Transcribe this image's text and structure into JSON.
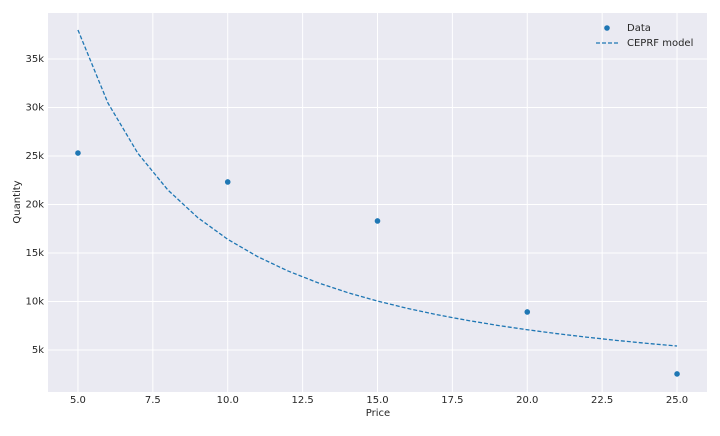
{
  "chart_data": {
    "type": "scatter",
    "xlabel": "Price",
    "ylabel": "Quantity",
    "xlim": [
      4,
      26
    ],
    "xticks": [
      {
        "value": 5,
        "label": "5.0"
      },
      {
        "value": 7.5,
        "label": "7.5"
      },
      {
        "value": 10,
        "label": "10.0"
      },
      {
        "value": 12.5,
        "label": "12.5"
      },
      {
        "value": 15,
        "label": "15.0"
      },
      {
        "value": 17.5,
        "label": "17.5"
      },
      {
        "value": 20,
        "label": "20.0"
      },
      {
        "value": 22.5,
        "label": "22.5"
      },
      {
        "value": 25,
        "label": "25.0"
      }
    ],
    "ylim": [
      670,
      39740
    ],
    "yticks": [
      {
        "value": 5000,
        "label": "5k"
      },
      {
        "value": 10000,
        "label": "10k"
      },
      {
        "value": 15000,
        "label": "15k"
      },
      {
        "value": 20000,
        "label": "20k"
      },
      {
        "value": 25000,
        "label": "25k"
      },
      {
        "value": 30000,
        "label": "30k"
      },
      {
        "value": 35000,
        "label": "35k"
      }
    ],
    "grid": true,
    "legend": "upper-right",
    "series": [
      {
        "name": "Data",
        "type": "scatter",
        "color": "#1f77b4",
        "x": [
          5,
          10,
          15,
          20,
          25
        ],
        "values": [
          25300,
          22320,
          18300,
          8920,
          2530
        ]
      },
      {
        "name": "CEPRF model",
        "type": "line",
        "dashed": true,
        "color": "#1f77b4",
        "x": [
          5,
          6,
          7,
          8,
          9,
          10,
          11,
          12,
          13,
          14,
          15,
          16,
          17,
          18,
          19,
          20,
          21,
          22,
          23,
          24,
          25
        ],
        "values": [
          37990,
          30464,
          25275,
          21502,
          18646,
          16412,
          14622,
          13160,
          11944,
          10918,
          10044,
          9289,
          8631,
          8054,
          7541,
          7089,
          6682,
          6318,
          5983,
          5683,
          5410
        ]
      }
    ]
  }
}
